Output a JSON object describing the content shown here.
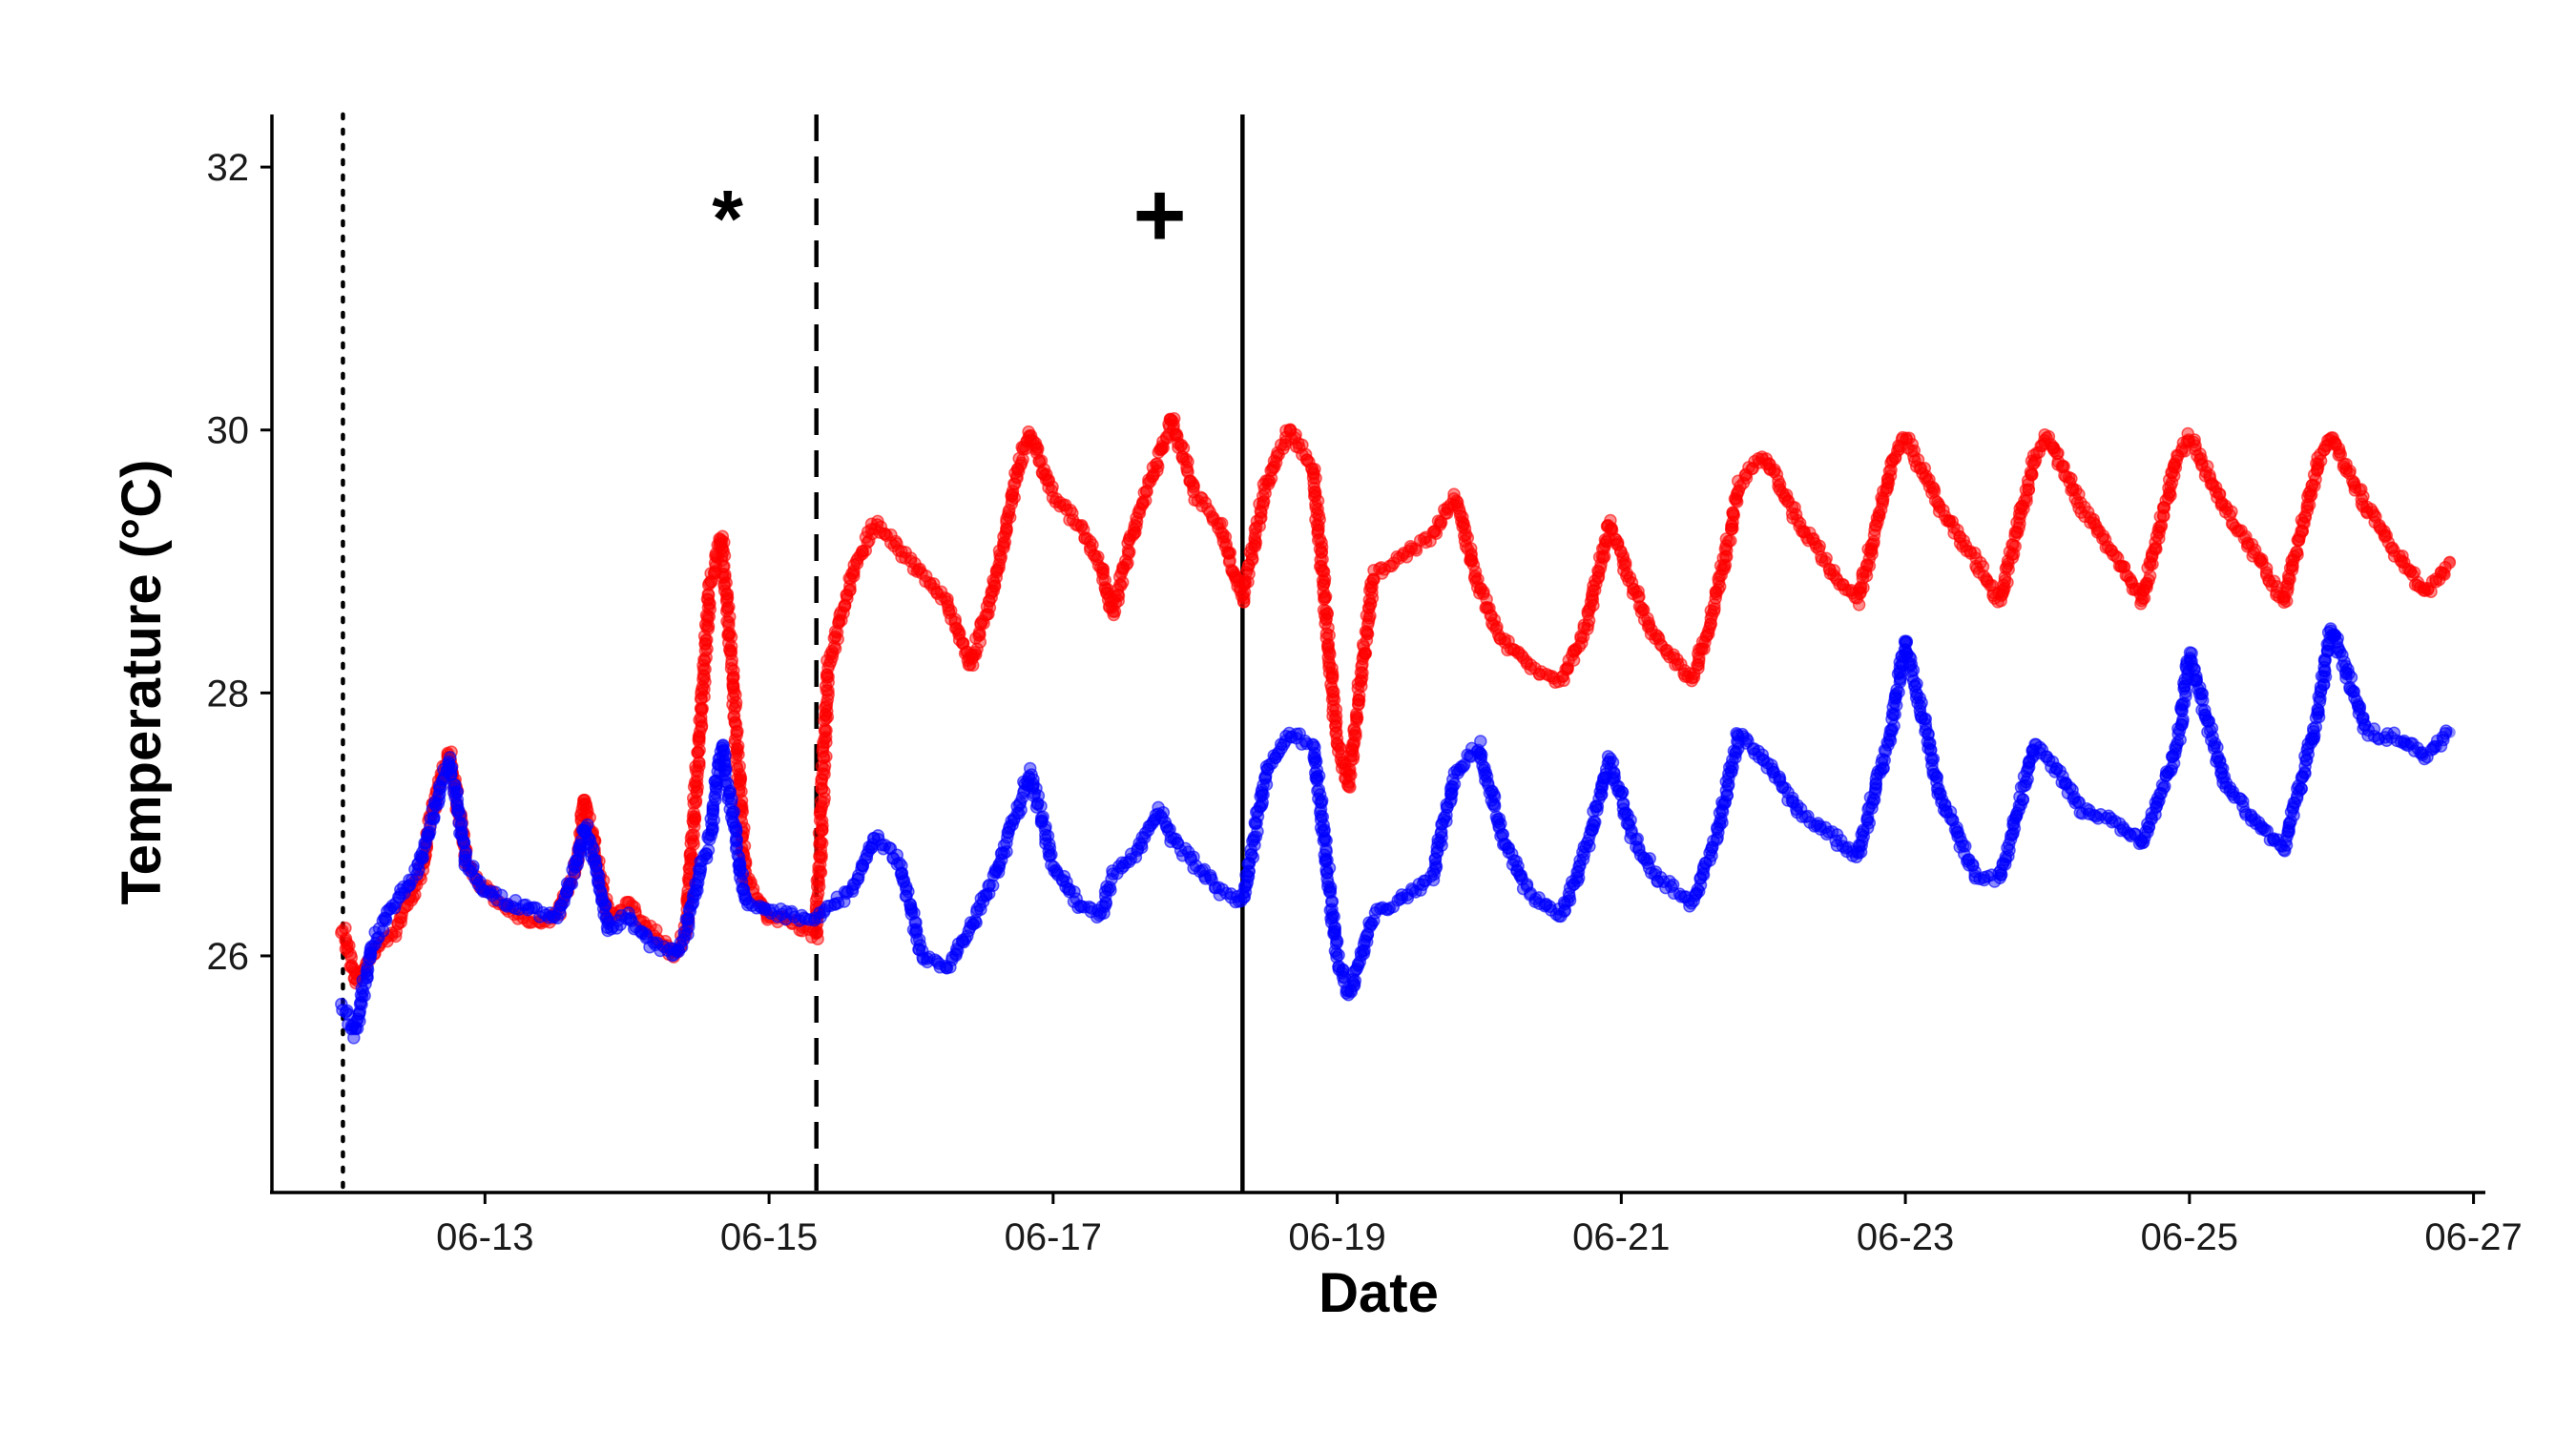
{
  "chart_data": {
    "type": "scatter",
    "xlabel": "Date",
    "ylabel": "Temperature (°C)",
    "xlim": [
      "2023-06-11T12:00",
      "2023-06-27T02:00"
    ],
    "ylim": [
      24.2,
      32.4
    ],
    "x_ticks": [
      {
        "date": "2023-06-13",
        "label": "06-13"
      },
      {
        "date": "2023-06-15",
        "label": "06-15"
      },
      {
        "date": "2023-06-17",
        "label": "06-17"
      },
      {
        "date": "2023-06-19",
        "label": "06-19"
      },
      {
        "date": "2023-06-21",
        "label": "06-21"
      },
      {
        "date": "2023-06-23",
        "label": "06-23"
      },
      {
        "date": "2023-06-25",
        "label": "06-25"
      },
      {
        "date": "2023-06-27",
        "label": "06-27"
      }
    ],
    "y_ticks": [
      {
        "value": 26,
        "label": "26"
      },
      {
        "value": 28,
        "label": "28"
      },
      {
        "value": 30,
        "label": "30"
      },
      {
        "value": 32,
        "label": "32"
      }
    ],
    "grid": false,
    "legend": "none",
    "vlines": [
      {
        "date": "2023-06-12T00:00",
        "style": "dotted"
      },
      {
        "date": "2023-06-15T08:00",
        "style": "dashed"
      },
      {
        "date": "2023-06-18T08:00",
        "style": "solid"
      }
    ],
    "annotations": [
      {
        "text": "*",
        "date": "2023-06-14T17:00",
        "y": 31.4
      },
      {
        "text": "+",
        "date": "2023-06-17T18:00",
        "y": 31.4
      }
    ],
    "series": [
      {
        "color": "#ff0000",
        "points": [
          [
            "2023-06-12T00:00",
            26.2
          ],
          [
            "2023-06-12T02:00",
            25.8
          ],
          [
            "2023-06-12T05:00",
            26.0
          ],
          [
            "2023-06-12T09:00",
            26.2
          ],
          [
            "2023-06-12T13:00",
            26.6
          ],
          [
            "2023-06-12T16:00",
            27.3
          ],
          [
            "2023-06-12T18:00",
            27.55
          ],
          [
            "2023-06-12T21:00",
            26.7
          ],
          [
            "2023-06-13T00:00",
            26.5
          ],
          [
            "2023-06-13T04:00",
            26.35
          ],
          [
            "2023-06-13T08:00",
            26.25
          ],
          [
            "2023-06-13T12:00",
            26.3
          ],
          [
            "2023-06-13T15:00",
            26.6
          ],
          [
            "2023-06-13T17:00",
            27.2
          ],
          [
            "2023-06-13T19:00",
            26.7
          ],
          [
            "2023-06-13T21:00",
            26.3
          ],
          [
            "2023-06-14T00:00",
            26.4
          ],
          [
            "2023-06-14T04:00",
            26.2
          ],
          [
            "2023-06-14T08:00",
            26.0
          ],
          [
            "2023-06-14T10:00",
            26.2
          ],
          [
            "2023-06-14T12:00",
            27.5
          ],
          [
            "2023-06-14T14:00",
            28.8
          ],
          [
            "2023-06-14T16:00",
            29.2
          ],
          [
            "2023-06-14T18:00",
            28.0
          ],
          [
            "2023-06-14T20:00",
            26.6
          ],
          [
            "2023-06-15T00:00",
            26.3
          ],
          [
            "2023-06-15T04:00",
            26.25
          ],
          [
            "2023-06-15T08:00",
            26.15
          ],
          [
            "2023-06-15T10:00",
            28.2
          ],
          [
            "2023-06-15T14:00",
            28.9
          ],
          [
            "2023-06-15T18:00",
            29.3
          ],
          [
            "2023-06-15T22:00",
            29.1
          ],
          [
            "2023-06-16T02:00",
            28.9
          ],
          [
            "2023-06-16T06:00",
            28.7
          ],
          [
            "2023-06-16T10:00",
            28.2
          ],
          [
            "2023-06-16T14:00",
            28.8
          ],
          [
            "2023-06-16T18:00",
            29.7
          ],
          [
            "2023-06-16T20:00",
            30.0
          ],
          [
            "2023-06-17T00:00",
            29.5
          ],
          [
            "2023-06-17T04:00",
            29.3
          ],
          [
            "2023-06-17T08:00",
            29.0
          ],
          [
            "2023-06-17T10:00",
            28.6
          ],
          [
            "2023-06-17T14:00",
            29.3
          ],
          [
            "2023-06-17T18:00",
            29.8
          ],
          [
            "2023-06-17T20:00",
            30.1
          ],
          [
            "2023-06-18T00:00",
            29.5
          ],
          [
            "2023-06-18T04:00",
            29.3
          ],
          [
            "2023-06-18T08:00",
            28.7
          ],
          [
            "2023-06-18T12:00",
            29.6
          ],
          [
            "2023-06-18T16:00",
            30.0
          ],
          [
            "2023-06-18T20:00",
            29.7
          ],
          [
            "2023-06-19T00:00",
            27.6
          ],
          [
            "2023-06-19T02:00",
            27.3
          ],
          [
            "2023-06-19T06:00",
            28.9
          ],
          [
            "2023-06-19T10:00",
            29.0
          ],
          [
            "2023-06-19T16:00",
            29.2
          ],
          [
            "2023-06-19T20:00",
            29.5
          ],
          [
            "2023-06-20T00:00",
            28.8
          ],
          [
            "2023-06-20T04:00",
            28.4
          ],
          [
            "2023-06-20T08:00",
            28.2
          ],
          [
            "2023-06-20T14:00",
            28.1
          ],
          [
            "2023-06-20T18:00",
            28.5
          ],
          [
            "2023-06-20T22:00",
            29.3
          ],
          [
            "2023-06-21T02:00",
            28.8
          ],
          [
            "2023-06-21T06:00",
            28.4
          ],
          [
            "2023-06-21T12:00",
            28.1
          ],
          [
            "2023-06-21T16:00",
            28.7
          ],
          [
            "2023-06-21T20:00",
            29.6
          ],
          [
            "2023-06-22T00:00",
            29.8
          ],
          [
            "2023-06-22T06:00",
            29.3
          ],
          [
            "2023-06-22T12:00",
            28.9
          ],
          [
            "2023-06-22T16:00",
            28.7
          ],
          [
            "2023-06-22T22:00",
            29.8
          ],
          [
            "2023-06-23T00:00",
            29.95
          ],
          [
            "2023-06-23T06:00",
            29.4
          ],
          [
            "2023-06-23T12:00",
            29.0
          ],
          [
            "2023-06-23T16:00",
            28.7
          ],
          [
            "2023-06-23T22:00",
            29.8
          ],
          [
            "2023-06-24T00:00",
            29.95
          ],
          [
            "2023-06-24T06:00",
            29.4
          ],
          [
            "2023-06-24T12:00",
            29.0
          ],
          [
            "2023-06-24T16:00",
            28.7
          ],
          [
            "2023-06-24T22:00",
            29.8
          ],
          [
            "2023-06-25T00:00",
            29.95
          ],
          [
            "2023-06-25T06:00",
            29.4
          ],
          [
            "2023-06-25T12:00",
            29.0
          ],
          [
            "2023-06-25T16:00",
            28.7
          ],
          [
            "2023-06-25T22:00",
            29.8
          ],
          [
            "2023-06-26T00:00",
            29.95
          ],
          [
            "2023-06-26T06:00",
            29.4
          ],
          [
            "2023-06-26T12:00",
            29.0
          ],
          [
            "2023-06-26T16:00",
            28.75
          ],
          [
            "2023-06-26T20:00",
            29.0
          ]
        ]
      },
      {
        "color": "#0000ff",
        "points": [
          [
            "2023-06-12T00:00",
            25.6
          ],
          [
            "2023-06-12T02:00",
            25.4
          ],
          [
            "2023-06-12T05:00",
            26.1
          ],
          [
            "2023-06-12T09:00",
            26.4
          ],
          [
            "2023-06-12T13:00",
            26.7
          ],
          [
            "2023-06-12T16:00",
            27.2
          ],
          [
            "2023-06-12T18:00",
            27.5
          ],
          [
            "2023-06-12T21:00",
            26.7
          ],
          [
            "2023-06-13T00:00",
            26.5
          ],
          [
            "2023-06-13T04:00",
            26.4
          ],
          [
            "2023-06-13T08:00",
            26.35
          ],
          [
            "2023-06-13T12:00",
            26.3
          ],
          [
            "2023-06-13T15:00",
            26.6
          ],
          [
            "2023-06-13T17:00",
            27.0
          ],
          [
            "2023-06-13T19:00",
            26.6
          ],
          [
            "2023-06-13T21:00",
            26.2
          ],
          [
            "2023-06-14T00:00",
            26.3
          ],
          [
            "2023-06-14T04:00",
            26.1
          ],
          [
            "2023-06-14T08:00",
            26.0
          ],
          [
            "2023-06-14T10:00",
            26.2
          ],
          [
            "2023-06-14T12:00",
            26.6
          ],
          [
            "2023-06-14T14:00",
            26.9
          ],
          [
            "2023-06-14T16:00",
            27.6
          ],
          [
            "2023-06-14T18:00",
            27.0
          ],
          [
            "2023-06-14T20:00",
            26.4
          ],
          [
            "2023-06-15T00:00",
            26.35
          ],
          [
            "2023-06-15T04:00",
            26.3
          ],
          [
            "2023-06-15T08:00",
            26.3
          ],
          [
            "2023-06-15T14:00",
            26.5
          ],
          [
            "2023-06-15T18:00",
            26.9
          ],
          [
            "2023-06-15T22:00",
            26.7
          ],
          [
            "2023-06-16T02:00",
            26.0
          ],
          [
            "2023-06-16T06:00",
            25.9
          ],
          [
            "2023-06-16T10:00",
            26.2
          ],
          [
            "2023-06-16T14:00",
            26.6
          ],
          [
            "2023-06-16T18:00",
            27.1
          ],
          [
            "2023-06-16T20:00",
            27.4
          ],
          [
            "2023-06-17T00:00",
            26.7
          ],
          [
            "2023-06-17T04:00",
            26.4
          ],
          [
            "2023-06-17T08:00",
            26.3
          ],
          [
            "2023-06-17T10:00",
            26.6
          ],
          [
            "2023-06-17T14:00",
            26.8
          ],
          [
            "2023-06-17T18:00",
            27.1
          ],
          [
            "2023-06-17T20:00",
            26.9
          ],
          [
            "2023-06-18T00:00",
            26.7
          ],
          [
            "2023-06-18T04:00",
            26.5
          ],
          [
            "2023-06-18T08:00",
            26.4
          ],
          [
            "2023-06-18T12:00",
            27.4
          ],
          [
            "2023-06-18T16:00",
            27.7
          ],
          [
            "2023-06-18T20:00",
            27.6
          ],
          [
            "2023-06-19T00:00",
            26.0
          ],
          [
            "2023-06-19T02:00",
            25.7
          ],
          [
            "2023-06-19T06:00",
            26.3
          ],
          [
            "2023-06-19T10:00",
            26.4
          ],
          [
            "2023-06-19T16:00",
            26.6
          ],
          [
            "2023-06-19T20:00",
            27.4
          ],
          [
            "2023-06-20T00:00",
            27.6
          ],
          [
            "2023-06-20T04:00",
            26.9
          ],
          [
            "2023-06-20T08:00",
            26.5
          ],
          [
            "2023-06-20T14:00",
            26.3
          ],
          [
            "2023-06-20T18:00",
            26.8
          ],
          [
            "2023-06-20T22:00",
            27.5
          ],
          [
            "2023-06-21T02:00",
            26.9
          ],
          [
            "2023-06-21T06:00",
            26.6
          ],
          [
            "2023-06-21T12:00",
            26.4
          ],
          [
            "2023-06-21T16:00",
            26.9
          ],
          [
            "2023-06-21T20:00",
            27.7
          ],
          [
            "2023-06-22T00:00",
            27.5
          ],
          [
            "2023-06-22T06:00",
            27.1
          ],
          [
            "2023-06-22T12:00",
            26.9
          ],
          [
            "2023-06-22T16:00",
            26.75
          ],
          [
            "2023-06-22T22:00",
            27.8
          ],
          [
            "2023-06-23T00:00",
            28.4
          ],
          [
            "2023-06-23T06:00",
            27.2
          ],
          [
            "2023-06-23T12:00",
            26.6
          ],
          [
            "2023-06-23T16:00",
            26.6
          ],
          [
            "2023-06-23T22:00",
            27.6
          ],
          [
            "2023-06-24T00:00",
            27.5
          ],
          [
            "2023-06-24T06:00",
            27.1
          ],
          [
            "2023-06-24T12:00",
            27.0
          ],
          [
            "2023-06-24T16:00",
            26.85
          ],
          [
            "2023-06-24T22:00",
            27.6
          ],
          [
            "2023-06-25T00:00",
            28.3
          ],
          [
            "2023-06-25T06:00",
            27.3
          ],
          [
            "2023-06-25T12:00",
            27.0
          ],
          [
            "2023-06-25T16:00",
            26.8
          ],
          [
            "2023-06-25T22:00",
            27.9
          ],
          [
            "2023-06-26T00:00",
            28.5
          ],
          [
            "2023-06-26T06:00",
            27.7
          ],
          [
            "2023-06-26T12:00",
            27.65
          ],
          [
            "2023-06-26T16:00",
            27.5
          ],
          [
            "2023-06-26T20:00",
            27.7
          ]
        ]
      }
    ]
  }
}
